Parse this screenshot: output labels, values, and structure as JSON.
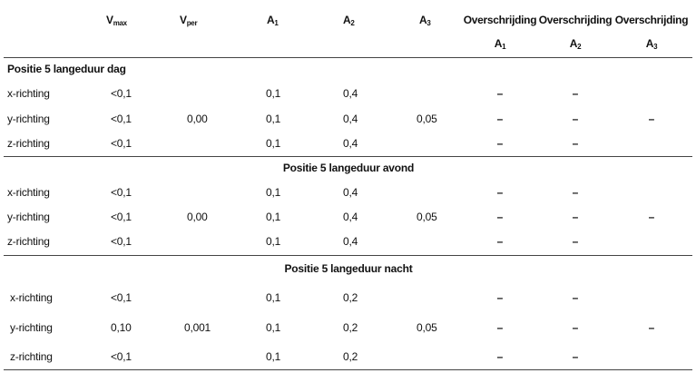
{
  "header": {
    "vmax": {
      "main": "V",
      "sub": "max"
    },
    "vper": {
      "main": "V",
      "sub": "per"
    },
    "a1": {
      "main": "A",
      "sub": "1"
    },
    "a2": {
      "main": "A",
      "sub": "2"
    },
    "a3": {
      "main": "A",
      "sub": "3"
    },
    "over1": "Overschrijding",
    "over2": "Overschrijding",
    "over3": "Overschrijding",
    "over_a1": {
      "main": "A",
      "sub": "1"
    },
    "over_a2": {
      "main": "A",
      "sub": "2"
    },
    "over_a3": {
      "main": "A",
      "sub": "3"
    }
  },
  "sections": [
    {
      "title": "Positie 5 langeduur dag",
      "rows": [
        {
          "label": "x-richting",
          "vmax": "<0,1",
          "vper": "",
          "a1": "0,1",
          "a2": "0,4",
          "a3": "",
          "o1": "–",
          "o2": "–",
          "o3": ""
        },
        {
          "label": "y-richting",
          "vmax": "<0,1",
          "vper": "0,00",
          "a1": "0,1",
          "a2": "0,4",
          "a3": "0,05",
          "o1": "–",
          "o2": "–",
          "o3": "–"
        },
        {
          "label": "z-richting",
          "vmax": "<0,1",
          "vper": "",
          "a1": "0,1",
          "a2": "0,4",
          "a3": "",
          "o1": "–",
          "o2": "–",
          "o3": ""
        }
      ]
    },
    {
      "title": "Positie 5 langeduur avond",
      "rows": [
        {
          "label": "x-richting",
          "vmax": "<0,1",
          "vper": "",
          "a1": "0,1",
          "a2": "0,4",
          "a3": "",
          "o1": "–",
          "o2": "–",
          "o3": ""
        },
        {
          "label": "y-richting",
          "vmax": "<0,1",
          "vper": "0,00",
          "a1": "0,1",
          "a2": "0,4",
          "a3": "0,05",
          "o1": "–",
          "o2": "–",
          "o3": "–"
        },
        {
          "label": "z-richting",
          "vmax": "<0,1",
          "vper": "",
          "a1": "0,1",
          "a2": "0,4",
          "a3": "",
          "o1": "–",
          "o2": "–",
          "o3": ""
        }
      ]
    },
    {
      "title": "Positie 5 langeduur nacht",
      "rows": [
        {
          "label": "x-richting",
          "vmax": "<0,1",
          "vper": "",
          "a1": "0,1",
          "a2": "0,2",
          "a3": "",
          "o1": "–",
          "o2": "–",
          "o3": ""
        },
        {
          "label": "y-richting",
          "vmax": "0,10",
          "vper": "0,001",
          "a1": "0,1",
          "a2": "0,2",
          "a3": "0,05",
          "o1": "–",
          "o2": "–",
          "o3": "–"
        },
        {
          "label": "z-richting",
          "vmax": "<0,1",
          "vper": "",
          "a1": "0,1",
          "a2": "0,2",
          "a3": "",
          "o1": "–",
          "o2": "–",
          "o3": ""
        }
      ]
    }
  ]
}
